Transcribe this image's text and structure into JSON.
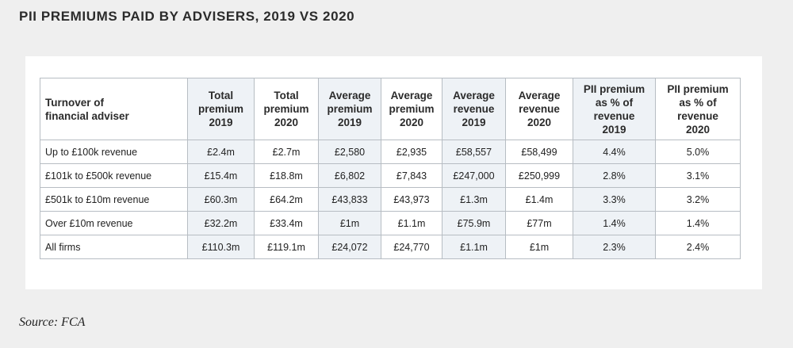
{
  "title": "PII PREMIUMS PAID BY ADVISERS, 2019 VS 2020",
  "table": {
    "headers": [
      "Turnover of\nfinancial adviser",
      "Total\npremium\n2019",
      "Total\npremium\n2020",
      "Average\npremium\n2019",
      "Average\npremium\n2020",
      "Average\nrevenue\n2019",
      "Average\nrevenue\n2020",
      "PII premium\nas % of\nrevenue\n2019",
      "PII premium\nas % of\nrevenue\n2020"
    ],
    "rows": [
      [
        "Up to £100k revenue",
        "£2.4m",
        "£2.7m",
        "£2,580",
        "£2,935",
        "£58,557",
        "£58,499",
        "4.4%",
        "5.0%"
      ],
      [
        "£101k to £500k revenue",
        "£15.4m",
        "£18.8m",
        "£6,802",
        "£7,843",
        "£247,000",
        "£250,999",
        "2.8%",
        "3.1%"
      ],
      [
        "£501k to £10m revenue",
        "£60.3m",
        "£64.2m",
        "£43,833",
        "£43,973",
        "£1.3m",
        "£1.4m",
        "3.3%",
        "3.2%"
      ],
      [
        "Over £10m revenue",
        "£32.2m",
        "£33.4m",
        "£1m",
        "£1.1m",
        "£75.9m",
        "£77m",
        "1.4%",
        "1.4%"
      ],
      [
        "All firms",
        "£110.3m",
        "£119.1m",
        "£24,072",
        "£24,770",
        "£1.1m",
        "£1m",
        "2.3%",
        "2.4%"
      ]
    ]
  },
  "source": "Source: FCA",
  "colors": {
    "background": "#efefef",
    "panel": "#ffffff",
    "shaded_column": "#eef2f6",
    "border": "#b7bdc3"
  }
}
